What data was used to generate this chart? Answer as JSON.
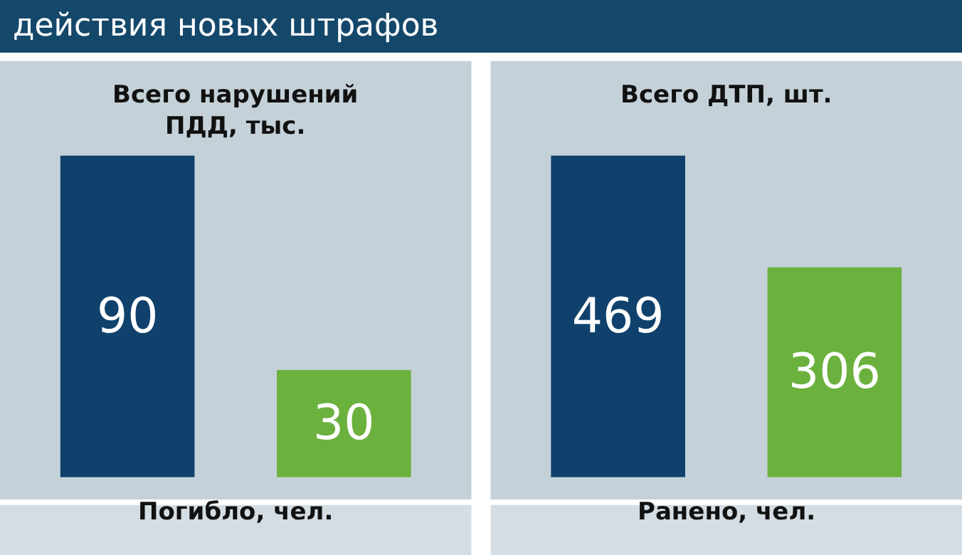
{
  "chart_data": [
    {
      "type": "bar",
      "title": "Всего нарушений ПДД, тыс.",
      "categories": [
        null,
        null
      ],
      "values": [
        90,
        30
      ],
      "colors": [
        "#0f416c",
        "#6bb13e"
      ],
      "data_labels": true,
      "annotations": [
        "действия новых штрафов",
        "Погибло, чел."
      ]
    },
    {
      "type": "bar",
      "title": "Всего ДТП, шт.",
      "categories": [
        null,
        null
      ],
      "values": [
        469,
        306
      ],
      "colors": [
        "#0f416c",
        "#6bb13e"
      ],
      "data_labels": true,
      "annotations": [
        "Ранено, чел."
      ]
    }
  ]
}
